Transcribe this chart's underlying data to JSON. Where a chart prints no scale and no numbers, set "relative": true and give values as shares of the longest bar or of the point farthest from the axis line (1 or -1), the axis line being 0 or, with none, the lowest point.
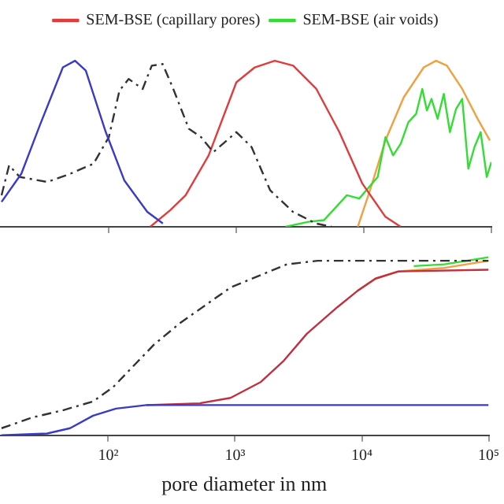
{
  "chart_data": [
    {
      "type": "line",
      "relative": true,
      "legend": "top",
      "tick_labels": false,
      "log": "x",
      "xlim": [
        14,
        100000
      ],
      "xticks": [
        {
          "value": 100,
          "label": null
        },
        {
          "value": 1000,
          "label": null
        },
        {
          "value": 10000,
          "label": null
        },
        {
          "value": 100000,
          "label": null
        }
      ],
      "series": [
        {
          "color": "#3a3ac8",
          "x": [
            14.4,
            20.6,
            28.7,
            43.6,
            54.3,
            65.9,
            94.6,
            132,
            200,
            265
          ],
          "values": [
            0.15,
            0.32,
            0.61,
            0.96,
            1.0,
            0.94,
            0.57,
            0.28,
            0.09,
            0.02
          ]
        },
        {
          "color": "#333333",
          "line_style": "dashed",
          "x": [
            14.4,
            16.5,
            20,
            32.9,
            50,
            75.8,
            100,
            121,
            143,
            184,
            217,
            264,
            320,
            424,
            528,
            660,
            1000,
            1316,
            1840,
            2780,
            4210,
            5580
          ],
          "values": [
            0.19,
            0.37,
            0.3,
            0.27,
            0.32,
            0.38,
            0.54,
            0.82,
            0.89,
            0.83,
            0.97,
            0.98,
            0.83,
            0.59,
            0.54,
            0.45,
            0.57,
            0.48,
            0.22,
            0.09,
            0.02,
            0
          ]
        },
        {
          "name": "SEM-BSE (capillary pores)",
          "color": "#e03c3c",
          "x": [
            211,
            303,
            400,
            606,
            1000,
            1395,
            2000,
            2790,
            4240,
            6420,
            9730,
            14760,
            19450
          ],
          "values": [
            0,
            0.1,
            0.19,
            0.43,
            0.87,
            0.96,
            1.0,
            0.97,
            0.83,
            0.57,
            0.26,
            0.06,
            0
          ]
        },
        {
          "name": "SEM-BSE (air voids)",
          "color": "#33dd33",
          "x": [
            2430,
            3680,
            4860,
            7360,
            9200,
            12830,
            14760,
            16950,
            19450,
            22350,
            25690,
            28710,
            31200,
            33900,
            37850,
            42350,
            47300,
            52850,
            59040,
            65960,
            73700,
            82400,
            92000,
            100000
          ],
          "values": [
            0,
            0.03,
            0.04,
            0.19,
            0.17,
            0.3,
            0.54,
            0.43,
            0.5,
            0.63,
            0.68,
            0.83,
            0.7,
            0.77,
            0.65,
            0.8,
            0.57,
            0.71,
            0.77,
            0.35,
            0.48,
            0.57,
            0.3,
            0.39
          ]
        },
        {
          "color": "#f0a040",
          "x": [
            8960,
            11170,
            14760,
            20550,
            29500,
            36800,
            44800,
            59040,
            78000,
            97300
          ],
          "values": [
            0,
            0.22,
            0.52,
            0.78,
            0.96,
            1.0,
            0.97,
            0.83,
            0.65,
            0.52
          ]
        }
      ]
    },
    {
      "type": "line",
      "relative": true,
      "legend": false,
      "tick_labels": "x",
      "log": "x",
      "xlabel": "pore diameter in nm",
      "xlim": [
        14,
        100000
      ],
      "xticks": [
        {
          "value": 100,
          "label": "10²"
        },
        {
          "value": 1000,
          "label": "10³"
        },
        {
          "value": 10000,
          "label": "10⁴"
        },
        {
          "value": 100000,
          "label": "10⁵"
        }
      ],
      "series": [
        {
          "color": "#3a3ac8",
          "x": [
            14.4,
            32.9,
            50,
            75.8,
            115,
            200,
            100000
          ],
          "values": [
            0,
            0.01,
            0.04,
            0.11,
            0.15,
            0.17,
            0.17
          ]
        },
        {
          "color": "#333333",
          "line_style": "dashed",
          "x": [
            14.4,
            25,
            43.6,
            75.8,
            109,
            230,
            368,
            921,
            2560,
            4470,
            100000
          ],
          "values": [
            0.04,
            0.1,
            0.14,
            0.19,
            0.27,
            0.51,
            0.63,
            0.83,
            0.96,
            0.98,
            0.98
          ]
        },
        {
          "color": "#c03040",
          "x": [
            200,
            528,
            921,
            1600,
            2430,
            3680,
            6420,
            9200,
            12830,
            19450,
            100000
          ],
          "values": [
            0.17,
            0.18,
            0.21,
            0.3,
            0.42,
            0.57,
            0.72,
            0.81,
            0.88,
            0.92,
            0.93
          ]
        },
        {
          "color": "#f0a040",
          "x": [
            9200,
            12830,
            19450,
            44800,
            100000
          ],
          "values": [
            0.81,
            0.88,
            0.92,
            0.94,
            0.98
          ]
        },
        {
          "color": "#33dd33",
          "x": [
            25690,
            44800,
            100000
          ],
          "values": [
            0.95,
            0.96,
            1.0
          ]
        }
      ]
    }
  ]
}
